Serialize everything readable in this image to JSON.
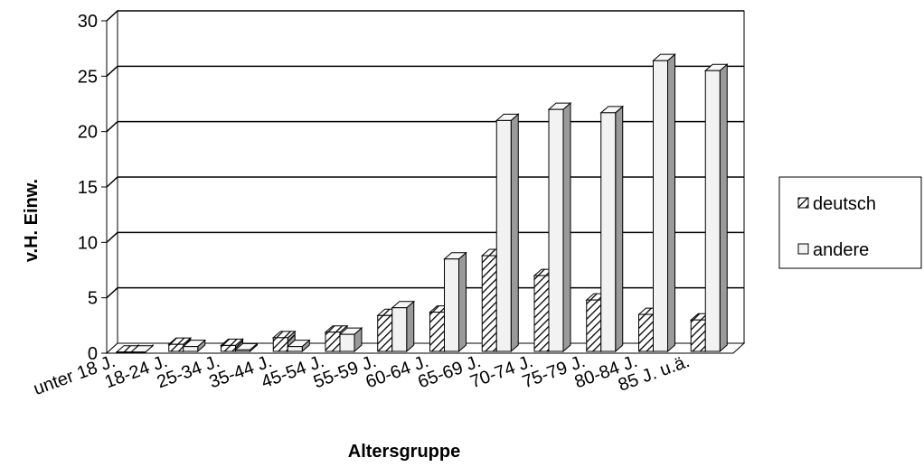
{
  "chart_data": {
    "type": "bar",
    "categories": [
      "unter 18 J.",
      "18-24 J.",
      "25-34 J.",
      "35-44 J.",
      "45-54 J.",
      "55-59 J.",
      "60-64 J.",
      "65-69 J.",
      "70-74 J.",
      "75-79 J.",
      "80-84 J.",
      "85 J. u.ä."
    ],
    "series": [
      {
        "name": "deutsch",
        "values": [
          0.1,
          0.8,
          0.7,
          1.4,
          1.9,
          3.4,
          3.7,
          8.8,
          7.0,
          4.8,
          3.5,
          3.0
        ]
      },
      {
        "name": "andere",
        "values": [
          0.1,
          0.6,
          0.3,
          0.6,
          1.7,
          4.1,
          8.5,
          21.0,
          22.0,
          21.7,
          26.4,
          25.5
        ]
      }
    ],
    "title": "",
    "xlabel": "Altersgruppe",
    "ylabel": "v.H. Einw.",
    "ylim": [
      0,
      30
    ],
    "yticks": [
      0,
      5,
      10,
      15,
      20,
      25,
      30
    ],
    "grid": true,
    "legend_position": "right",
    "colors": {
      "deutsch": "#ffffff",
      "andere": "#f2f2f2",
      "grid": "#000000",
      "hatch": "#000000"
    }
  }
}
